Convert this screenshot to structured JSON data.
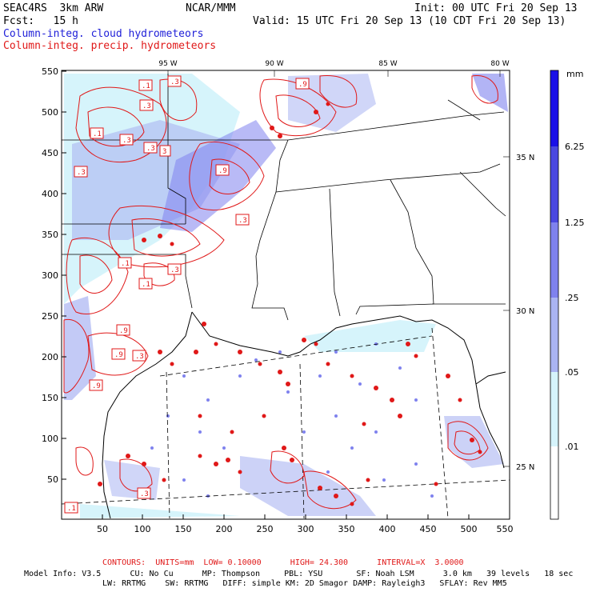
{
  "header": {
    "title": "SEAC4RS  3km ARW",
    "org": "NCAR/MMM",
    "init": "Init: 00 UTC Fri 20 Sep 13",
    "fcst": "Fcst:   15 h",
    "valid": "Valid: 15 UTC Fri 20 Sep 13 (10 CDT Fri 20 Sep 13)",
    "legend_cloud": "Column-integ. cloud hydrometeors",
    "legend_precip": "Column-integ. precip. hydrometeors"
  },
  "colorbar": {
    "unit": "mm",
    "labels": [
      "6.25",
      "1.25",
      ".25",
      ".05",
      ".01"
    ],
    "colors": [
      "#1a10e8",
      "#4a48e0",
      "#7f82ee",
      "#aab4f2",
      "#d6f4fb",
      "#ffffff"
    ]
  },
  "axes": {
    "x_ticks": [
      "50",
      "100",
      "150",
      "200",
      "250",
      "300",
      "350",
      "400",
      "450",
      "500",
      "550"
    ],
    "y_ticks": [
      "50",
      "100",
      "150",
      "200",
      "250",
      "300",
      "350",
      "400",
      "450",
      "500",
      "550"
    ],
    "lon_labels": [
      "95 W",
      "90 W",
      "85 W",
      "80 W"
    ],
    "lat_labels": [
      "35 N",
      "30 N",
      "25 N"
    ]
  },
  "contour_labels": [
    ".1",
    ".3",
    ".9",
    "3"
  ],
  "colors": {
    "precip": "#e01818",
    "cloud": "#1e1ed8",
    "map": "#000000"
  },
  "footer": {
    "contours": "CONTOURS:  UNITS=mm  LOW= 0.10000      HIGH= 24.300      INTERVAL=X  3.0000",
    "model_line1": "Model Info: V3.5      CU: No Cu      MP: Thompson     PBL: YSU       SF: Noah LSM      3.0 km   39 levels   18 sec",
    "model_line2": "LW: RRTMG    SW: RRTMG   DIFF: simple KM: 2D Smagor DAMP: Rayleigh3   SFLAY: Rev MM5"
  }
}
